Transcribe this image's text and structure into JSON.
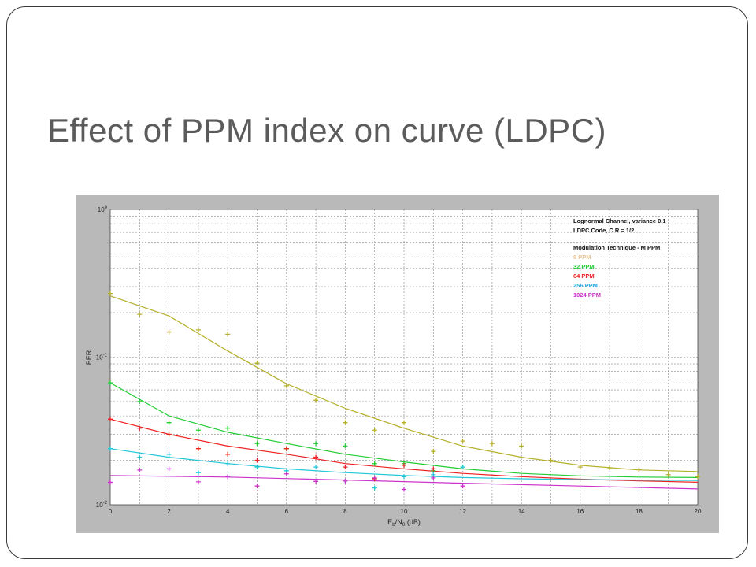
{
  "slide": {
    "title": "Effect of PPM index on curve (LDPC)"
  },
  "chart_data": {
    "type": "scatter",
    "xlabel_main": "E",
    "xlabel_sub1": "b",
    "xlabel_mid": "/N",
    "xlabel_sub2": "0",
    "xlabel_unit": " (dB)",
    "ylabel": "BER",
    "xlim": [
      0,
      20
    ],
    "ylim": [
      0.01,
      1
    ],
    "y_scale": "log",
    "grid": true,
    "x_ticks": [
      "0",
      "2",
      "4",
      "6",
      "8",
      "10",
      "12",
      "14",
      "16",
      "18",
      "20"
    ],
    "y_ticks": [
      {
        "base": "10",
        "exp": "0",
        "value": 1
      },
      {
        "base": "10",
        "exp": "-1",
        "value": 0.1
      },
      {
        "base": "10",
        "exp": "-2",
        "value": 0.01
      }
    ],
    "legend": {
      "position": "top-right",
      "header": [
        "Lognormal Channel, variance 0.1",
        "LDPC Code, C.R = 1/2",
        "",
        "Modulation Technique - M PPM"
      ]
    },
    "series": [
      {
        "name": "8 PPM",
        "color": "#b5b02a",
        "legend_color": "#e8c79a",
        "points": [
          [
            0,
            0.27
          ],
          [
            1,
            0.195
          ],
          [
            2,
            0.148
          ],
          [
            3,
            0.153
          ],
          [
            4,
            0.143
          ],
          [
            5,
            0.091
          ],
          [
            6,
            0.064
          ],
          [
            7,
            0.051
          ],
          [
            8,
            0.036
          ],
          [
            9,
            0.032
          ],
          [
            10,
            0.036
          ],
          [
            11,
            0.023
          ],
          [
            12,
            0.027
          ],
          [
            13,
            0.026
          ],
          [
            14,
            0.025
          ],
          [
            15,
            0.02
          ],
          [
            16,
            0.018
          ],
          [
            17,
            0.0178
          ],
          [
            18,
            0.0173
          ],
          [
            19,
            0.016
          ],
          [
            20,
            0.0155
          ]
        ],
        "fit": [
          [
            0,
            0.26
          ],
          [
            2,
            0.19
          ],
          [
            4,
            0.11
          ],
          [
            6,
            0.066
          ],
          [
            8,
            0.045
          ],
          [
            10,
            0.033
          ],
          [
            12,
            0.025
          ],
          [
            14,
            0.021
          ],
          [
            16,
            0.0185
          ],
          [
            18,
            0.0172
          ],
          [
            20,
            0.0168
          ]
        ]
      },
      {
        "name": "32 PPM",
        "color": "#22cc33",
        "legend_color": "#22cc33",
        "points": [
          [
            0,
            0.067
          ],
          [
            1,
            0.05
          ],
          [
            2,
            0.036
          ],
          [
            3,
            0.032
          ],
          [
            4,
            0.033
          ],
          [
            5,
            0.026
          ],
          [
            6,
            0.024
          ],
          [
            7,
            0.026
          ],
          [
            8,
            0.025
          ],
          [
            9,
            0.019
          ],
          [
            10,
            0.019
          ],
          [
            11,
            0.017
          ],
          [
            12,
            0.018
          ]
        ],
        "fit": [
          [
            0,
            0.067
          ],
          [
            2,
            0.04
          ],
          [
            4,
            0.031
          ],
          [
            6,
            0.026
          ],
          [
            8,
            0.022
          ],
          [
            10,
            0.0195
          ],
          [
            12,
            0.0175
          ],
          [
            14,
            0.0163
          ],
          [
            16,
            0.0157
          ],
          [
            18,
            0.0154
          ],
          [
            20,
            0.0153
          ]
        ]
      },
      {
        "name": "64 PPM",
        "color": "#ee2222",
        "legend_color": "#ee2222",
        "points": [
          [
            0,
            0.038
          ],
          [
            1,
            0.033
          ],
          [
            2,
            0.03
          ],
          [
            3,
            0.024
          ],
          [
            4,
            0.022
          ],
          [
            5,
            0.02
          ],
          [
            6,
            0.024
          ],
          [
            7,
            0.021
          ],
          [
            8,
            0.018
          ],
          [
            9,
            0.015
          ],
          [
            10,
            0.0185
          ],
          [
            11,
            0.0175
          ]
        ],
        "fit": [
          [
            0,
            0.038
          ],
          [
            2,
            0.03
          ],
          [
            4,
            0.025
          ],
          [
            6,
            0.022
          ],
          [
            8,
            0.019
          ],
          [
            10,
            0.0175
          ],
          [
            12,
            0.0163
          ],
          [
            14,
            0.0155
          ],
          [
            16,
            0.0149
          ],
          [
            18,
            0.0145
          ],
          [
            20,
            0.0142
          ]
        ]
      },
      {
        "name": "256 PPM",
        "color": "#22c8d8",
        "legend_color": "#22aadd",
        "points": [
          [
            0,
            0.024
          ],
          [
            1,
            0.021
          ],
          [
            2,
            0.022
          ],
          [
            3,
            0.0165
          ],
          [
            4,
            0.019
          ],
          [
            5,
            0.018
          ],
          [
            6,
            0.017
          ],
          [
            7,
            0.018
          ],
          [
            8,
            0.0145
          ],
          [
            9,
            0.013
          ],
          [
            10,
            0.0155
          ],
          [
            11,
            0.016
          ],
          [
            12,
            0.018
          ]
        ],
        "fit": [
          [
            0,
            0.024
          ],
          [
            2,
            0.021
          ],
          [
            4,
            0.019
          ],
          [
            6,
            0.0175
          ],
          [
            8,
            0.0165
          ],
          [
            10,
            0.0158
          ],
          [
            12,
            0.0153
          ],
          [
            14,
            0.015
          ],
          [
            16,
            0.0148
          ],
          [
            18,
            0.0147
          ],
          [
            20,
            0.0146
          ]
        ]
      },
      {
        "name": "1024 PPM",
        "color": "#cc33cc",
        "legend_color": "#cc33cc",
        "points": [
          [
            0,
            0.0142
          ],
          [
            1,
            0.0172
          ],
          [
            2,
            0.0175
          ],
          [
            3,
            0.0143
          ],
          [
            4,
            0.0155
          ],
          [
            5,
            0.0134
          ],
          [
            6,
            0.0162
          ],
          [
            7,
            0.0144
          ],
          [
            8,
            0.0145
          ],
          [
            9,
            0.0152
          ],
          [
            10,
            0.0127
          ],
          [
            11,
            0.0152
          ],
          [
            12,
            0.0134
          ]
        ],
        "fit": [
          [
            0,
            0.0158
          ],
          [
            4,
            0.0154
          ],
          [
            8,
            0.0147
          ],
          [
            12,
            0.014
          ],
          [
            16,
            0.0134
          ],
          [
            20,
            0.0128
          ]
        ]
      }
    ]
  }
}
